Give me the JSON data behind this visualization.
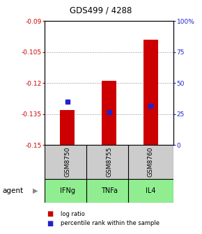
{
  "title": "GDS499 / 4288",
  "ylim_left": [
    -0.15,
    -0.09
  ],
  "ylim_right": [
    0,
    100
  ],
  "yticks_left": [
    -0.15,
    -0.135,
    -0.12,
    -0.105,
    -0.09
  ],
  "ytick_labels_left": [
    "-0.15",
    "-0.135",
    "-0.12",
    "-0.105",
    "-0.09"
  ],
  "yticks_right": [
    0,
    25,
    50,
    75,
    100
  ],
  "ytick_labels_right": [
    "0",
    "25",
    "50",
    "75",
    "100%"
  ],
  "categories": [
    "IFNg",
    "TNFa",
    "IL4"
  ],
  "sample_labels": [
    "GSM8750",
    "GSM8755",
    "GSM8760"
  ],
  "bar_bottoms": [
    -0.15,
    -0.15,
    -0.15
  ],
  "bar_tops": [
    -0.133,
    -0.119,
    -0.099
  ],
  "percentile_values": [
    -0.129,
    -0.134,
    -0.131
  ],
  "bar_color": "#cc0000",
  "percentile_color": "#2222cc",
  "agent_bg_color": "#90ee90",
  "sample_bg_color": "#cccccc",
  "left_axis_color": "#cc0000",
  "right_axis_color": "#2222cc",
  "dotted_line_color": "#888888",
  "legend_items": [
    {
      "label": "log ratio",
      "color": "#cc0000"
    },
    {
      "label": "percentile rank within the sample",
      "color": "#2222cc"
    }
  ],
  "bar_width": 0.35,
  "agent_label": "agent"
}
